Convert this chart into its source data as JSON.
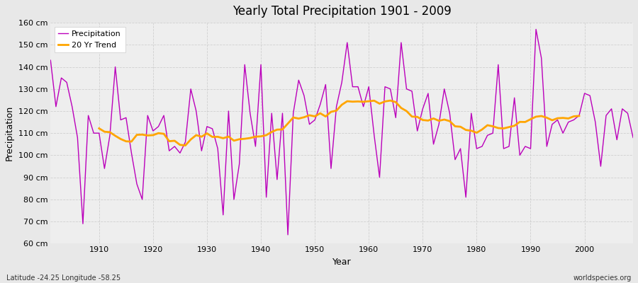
{
  "title": "Yearly Total Precipitation 1901 - 2009",
  "xlabel": "Year",
  "ylabel": "Precipitation",
  "subtitle": "Latitude -24.25 Longitude -58.25",
  "watermark": "worldspecies.org",
  "years": [
    1901,
    1902,
    1903,
    1904,
    1905,
    1906,
    1907,
    1908,
    1909,
    1910,
    1911,
    1912,
    1913,
    1914,
    1915,
    1916,
    1917,
    1918,
    1919,
    1920,
    1921,
    1922,
    1923,
    1924,
    1925,
    1926,
    1927,
    1928,
    1929,
    1930,
    1931,
    1932,
    1933,
    1934,
    1935,
    1936,
    1937,
    1938,
    1939,
    1940,
    1941,
    1942,
    1943,
    1944,
    1945,
    1946,
    1947,
    1948,
    1949,
    1950,
    1951,
    1952,
    1953,
    1954,
    1955,
    1956,
    1957,
    1958,
    1959,
    1960,
    1961,
    1962,
    1963,
    1964,
    1965,
    1966,
    1967,
    1968,
    1969,
    1970,
    1971,
    1972,
    1973,
    1974,
    1975,
    1976,
    1977,
    1978,
    1979,
    1980,
    1981,
    1982,
    1983,
    1984,
    1985,
    1986,
    1987,
    1988,
    1989,
    1990,
    1991,
    1992,
    1993,
    1994,
    1995,
    1996,
    1997,
    1998,
    1999,
    2000,
    2001,
    2002,
    2003,
    2004,
    2005,
    2006,
    2007,
    2008,
    2009
  ],
  "precipitation": [
    143,
    122,
    135,
    133,
    122,
    108,
    69,
    118,
    110,
    110,
    94,
    109,
    140,
    116,
    117,
    101,
    87,
    80,
    118,
    111,
    113,
    118,
    102,
    104,
    101,
    106,
    130,
    120,
    102,
    113,
    112,
    103,
    73,
    120,
    80,
    96,
    141,
    119,
    104,
    141,
    81,
    119,
    89,
    119,
    64,
    119,
    134,
    127,
    114,
    116,
    123,
    132,
    94,
    122,
    133,
    151,
    131,
    131,
    122,
    131,
    109,
    90,
    131,
    130,
    117,
    151,
    130,
    129,
    111,
    121,
    128,
    105,
    114,
    130,
    119,
    98,
    103,
    81,
    119,
    103,
    104,
    109,
    110,
    141,
    103,
    104,
    126,
    100,
    104,
    103,
    157,
    144,
    104,
    114,
    116,
    110,
    115,
    116,
    118,
    128,
    127,
    115,
    95,
    118,
    121,
    107,
    121,
    119,
    108
  ],
  "trend_color": "#FFA500",
  "precip_color": "#BB00BB",
  "bg_color": "#E8E8E8",
  "plot_bg_color": "#EEEEEE",
  "ylim": [
    60,
    160
  ],
  "yticks": [
    60,
    70,
    80,
    90,
    100,
    110,
    120,
    130,
    140,
    150,
    160
  ],
  "trend_window": 20,
  "figsize": [
    9.0,
    4.0
  ],
  "dpi": 100
}
